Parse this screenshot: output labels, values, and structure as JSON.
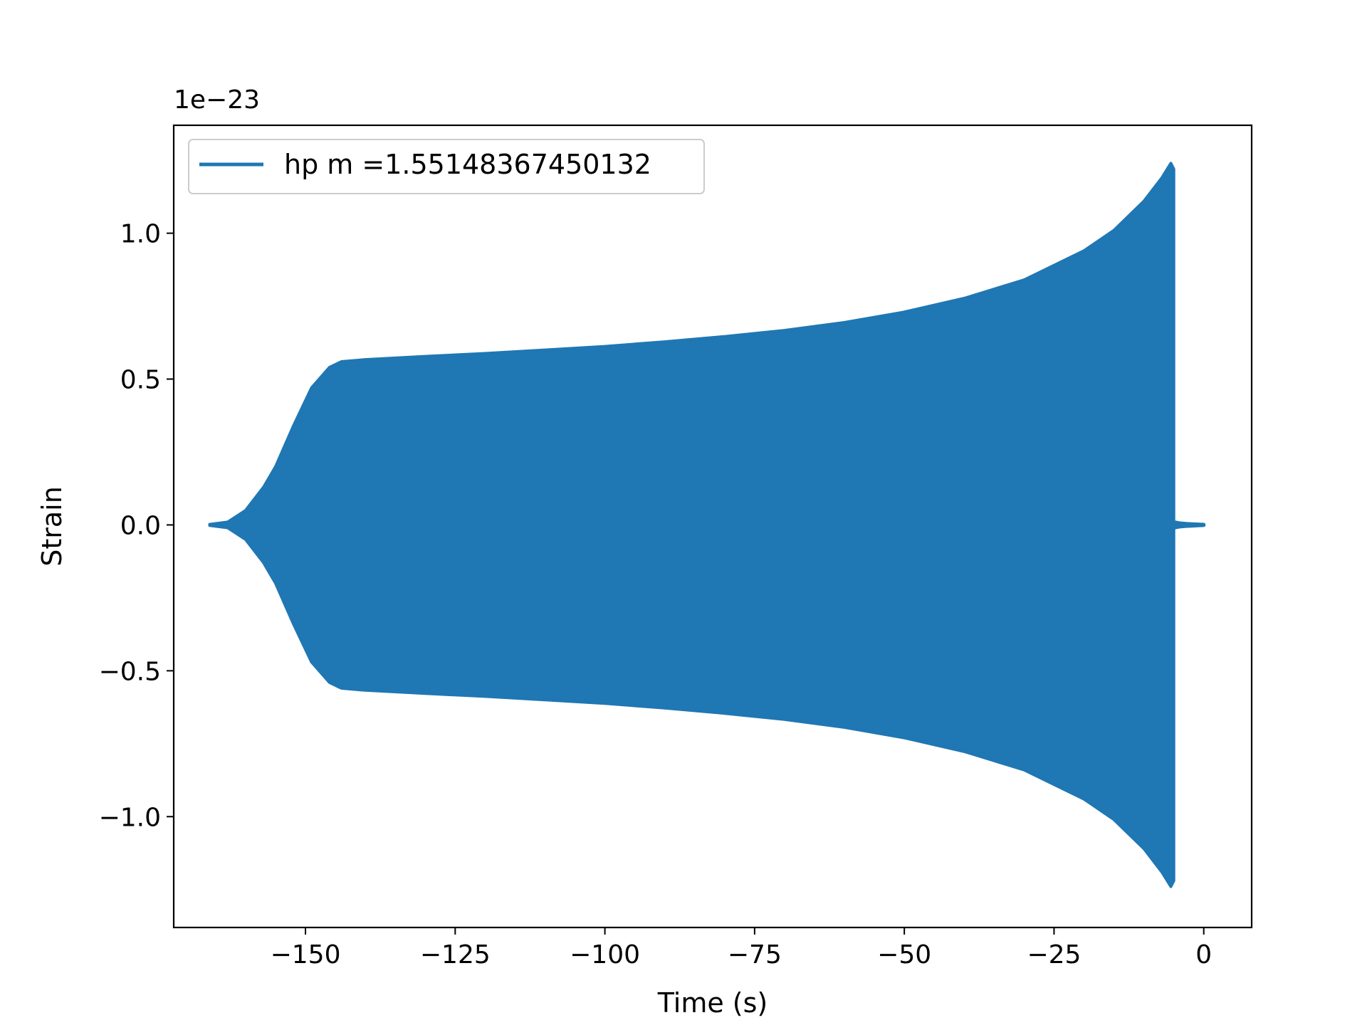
{
  "chart_data": {
    "type": "line",
    "title": "",
    "xlabel": "Time (s)",
    "ylabel": "Strain",
    "y_scale_label": "1e−23",
    "xlim": [
      -172,
      8
    ],
    "ylim": [
      -1.38,
      1.37
    ],
    "x_ticks": [
      -150,
      -125,
      -100,
      -75,
      -50,
      -25,
      0
    ],
    "x_tick_labels": [
      "−150",
      "−125",
      "−100",
      "−75",
      "−50",
      "−25",
      "0"
    ],
    "y_ticks": [
      -1.0,
      -0.5,
      0.0,
      0.5,
      1.0
    ],
    "y_tick_labels": [
      "−1.0",
      "−0.5",
      "0.0",
      "0.5",
      "1.0"
    ],
    "grid": false,
    "legend_position": "upper-left",
    "series": [
      {
        "name": "hp m =1.55148367450132",
        "color": "#1f77b4",
        "x_range": [
          -166.0,
          0.0
        ],
        "envelope": {
          "time": [
            -166,
            -163,
            -160,
            -157,
            -155,
            -152,
            -149,
            -146,
            -144,
            -140,
            -130,
            -120,
            -110,
            -100,
            -90,
            -80,
            -70,
            -60,
            -50,
            -40,
            -30,
            -20,
            -15,
            -10,
            -7,
            -5.5,
            -5
          ],
          "upper": [
            0.002,
            0.01,
            0.05,
            0.13,
            0.2,
            0.34,
            0.47,
            0.54,
            0.56,
            0.567,
            0.578,
            0.588,
            0.6,
            0.612,
            0.628,
            0.646,
            0.667,
            0.694,
            0.73,
            0.777,
            0.84,
            0.94,
            1.01,
            1.11,
            1.19,
            1.24,
            1.22
          ],
          "lower": [
            -0.002,
            -0.01,
            -0.05,
            -0.13,
            -0.2,
            -0.34,
            -0.47,
            -0.54,
            -0.56,
            -0.567,
            -0.578,
            -0.588,
            -0.6,
            -0.612,
            -0.628,
            -0.646,
            -0.667,
            -0.694,
            -0.73,
            -0.777,
            -0.84,
            -0.94,
            -1.01,
            -1.11,
            -1.19,
            -1.24,
            -1.22
          ]
        },
        "tail": {
          "time": [
            -5,
            -4.5,
            -4,
            -3,
            -2,
            -1,
            0
          ],
          "upper": [
            0.01,
            0.008,
            0.006,
            0.004,
            0.003,
            0.002,
            0.001
          ],
          "lower": [
            -0.01,
            -0.008,
            -0.006,
            -0.004,
            -0.003,
            -0.002,
            -0.001
          ]
        }
      }
    ]
  }
}
